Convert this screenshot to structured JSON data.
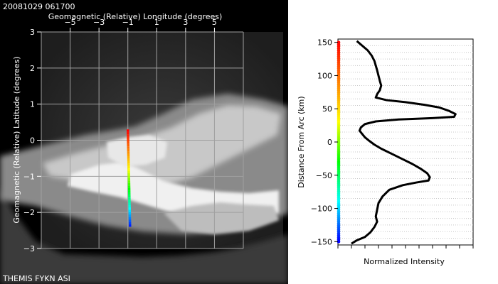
{
  "timestamp": "20081029 061700",
  "station_label": "THEMIS FYKN ASI",
  "chart_data": [
    {
      "type": "image",
      "xlabel": "Geomagnetic (Relative) Longitude (degrees)",
      "ylabel": "Geomagnetic (Relative) Latitude (degrees)",
      "x_ticks": [
        "−5",
        "−3",
        "−1",
        "1",
        "3",
        "5"
      ],
      "x_tick_values": [
        -5,
        -3,
        -1,
        1,
        3,
        5
      ],
      "y_ticks": [
        "3",
        "2",
        "1",
        "0",
        "−1",
        "−2",
        "−3"
      ],
      "y_tick_values": [
        3,
        2,
        1,
        0,
        -1,
        -2,
        -3
      ],
      "xlim": [
        -7,
        7
      ],
      "ylim": [
        -3,
        3
      ],
      "grid": true,
      "transect": {
        "start": [
          -1.0,
          0.3
        ],
        "end": [
          -0.85,
          -2.4
        ],
        "colormap": [
          "#ff0000",
          "#ff8000",
          "#ffff00",
          "#00ff00",
          "#00ffff",
          "#0000ff"
        ]
      }
    },
    {
      "type": "line",
      "xlabel": "Normalized Intensity",
      "ylabel": "Distance From Arc (km)",
      "y_ticks": [
        "150",
        "100",
        "50",
        "0",
        "−50",
        "−100",
        "−150"
      ],
      "y_tick_values": [
        150,
        100,
        50,
        0,
        -50,
        -100,
        -150
      ],
      "ylim": [
        -155,
        155
      ],
      "xlim": [
        0,
        1
      ],
      "grid": true,
      "series": [
        {
          "values": [
            [
              0.14,
              152
            ],
            [
              0.18,
              145
            ],
            [
              0.22,
              138
            ],
            [
              0.25,
              130
            ],
            [
              0.27,
              122
            ],
            [
              0.28,
              115
            ],
            [
              0.29,
              108
            ],
            [
              0.3,
              100
            ],
            [
              0.31,
              92
            ],
            [
              0.32,
              85
            ],
            [
              0.31,
              78
            ],
            [
              0.29,
              72
            ],
            [
              0.28,
              67
            ],
            [
              0.36,
              63
            ],
            [
              0.5,
              60
            ],
            [
              0.64,
              56
            ],
            [
              0.75,
              52
            ],
            [
              0.82,
              47
            ],
            [
              0.87,
              42
            ],
            [
              0.86,
              38
            ],
            [
              0.7,
              36
            ],
            [
              0.45,
              34
            ],
            [
              0.28,
              31
            ],
            [
              0.2,
              27
            ],
            [
              0.17,
              22
            ],
            [
              0.16,
              17
            ],
            [
              0.18,
              12
            ],
            [
              0.2,
              7
            ],
            [
              0.23,
              2
            ],
            [
              0.27,
              -4
            ],
            [
              0.32,
              -10
            ],
            [
              0.4,
              -18
            ],
            [
              0.48,
              -26
            ],
            [
              0.55,
              -33
            ],
            [
              0.61,
              -40
            ],
            [
              0.66,
              -47
            ],
            [
              0.68,
              -53
            ],
            [
              0.67,
              -58
            ],
            [
              0.58,
              -61
            ],
            [
              0.48,
              -65
            ],
            [
              0.38,
              -72
            ],
            [
              0.33,
              -82
            ],
            [
              0.3,
              -92
            ],
            [
              0.29,
              -102
            ],
            [
              0.28,
              -112
            ],
            [
              0.29,
              -120
            ],
            [
              0.27,
              -128
            ],
            [
              0.24,
              -136
            ],
            [
              0.2,
              -143
            ],
            [
              0.14,
              -148
            ],
            [
              0.1,
              -153
            ]
          ]
        }
      ],
      "distance_colorbar": [
        "#ff0000",
        "#ff8000",
        "#ffff00",
        "#00ff00",
        "#00ffff",
        "#0000ff"
      ]
    }
  ]
}
